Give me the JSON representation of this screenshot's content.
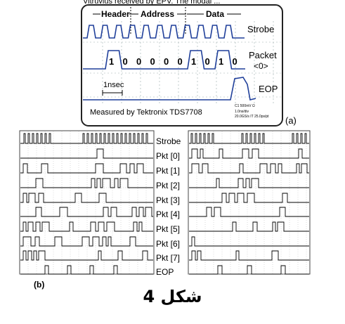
{
  "header_text": "Vitruvius received by EPV. The modal ...",
  "panel_a": {
    "fields": {
      "header": "Header",
      "address": "Address",
      "data": "Data"
    },
    "bits": [
      "1",
      "0",
      "0",
      "0",
      "0",
      "0",
      "1",
      "0",
      "1",
      "0"
    ],
    "labels": {
      "strobe": "Strobe",
      "packet": "Packet",
      "packet_idx": "<0>",
      "eop": "EOP"
    },
    "time_marker": "1nsec",
    "measured_by": "Measured by Tektronix TDS7708",
    "scope_info": [
      "C1  500mV  Ω",
      "1.0ns/div",
      "20.0GS/s IT 25.0ps/pt"
    ],
    "tag": "(a)"
  },
  "panel_b": {
    "labels": [
      "Strobe",
      "Pkt [0]",
      "Pkt [1]",
      "Pkt [2]",
      "Pkt [3]",
      "Pkt [4]",
      "Pkt [5]",
      "Pkt [6]",
      "Pkt [7]",
      "EOP"
    ],
    "tag": "(b)"
  },
  "caption": "شكل 4"
}
